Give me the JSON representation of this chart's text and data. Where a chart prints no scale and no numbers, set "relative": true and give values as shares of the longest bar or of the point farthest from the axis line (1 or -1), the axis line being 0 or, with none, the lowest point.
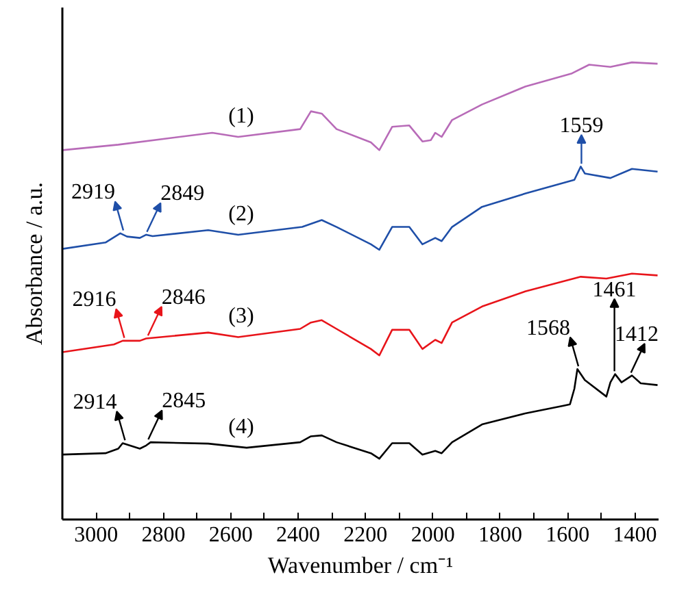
{
  "chart_data": {
    "type": "line",
    "relative": true,
    "xlabel": "Wavenumber / cm⁻¹",
    "ylabel": "Absorbance / a.u.",
    "xlim": [
      3100,
      1330
    ],
    "xticks": [
      3000,
      {
        "value": 2900,
        "label": null
      },
      2800,
      {
        "value": 2700,
        "label": null
      },
      2600,
      {
        "value": 2500,
        "label": null
      },
      2400,
      {
        "value": 2300,
        "label": null
      },
      2200,
      {
        "value": 2100,
        "label": null
      },
      2000,
      {
        "value": 1900,
        "label": null
      },
      1800,
      {
        "value": 1700,
        "label": null
      },
      1600,
      {
        "value": 1500,
        "label": null
      },
      1400
    ],
    "series": [
      {
        "name": "(1)",
        "color": "#b86bb8",
        "x": [
          3100,
          2934,
          2655,
          2578,
          2394,
          2362,
          2330,
          2286,
          2184,
          2159,
          2121,
          2070,
          2031,
          2006,
          1993,
          1974,
          1943,
          1854,
          1726,
          1587,
          1536,
          1473,
          1409,
          1333
        ],
        "values": [
          0.808,
          0.82,
          0.846,
          0.837,
          0.854,
          0.893,
          0.888,
          0.854,
          0.825,
          0.808,
          0.859,
          0.862,
          0.827,
          0.83,
          0.846,
          0.837,
          0.874,
          0.908,
          0.947,
          0.976,
          0.995,
          0.99,
          1.0,
          0.997
        ]
      },
      {
        "name": "(2)",
        "color": "#1f4fa8",
        "x": [
          3100,
          2972,
          2928,
          2908,
          2870,
          2851,
          2832,
          2667,
          2578,
          2388,
          2330,
          2286,
          2184,
          2159,
          2121,
          2070,
          2031,
          1993,
          1974,
          1943,
          1854,
          1726,
          1580,
          1561,
          1549,
          1473,
          1409,
          1333
        ],
        "values": [
          0.592,
          0.606,
          0.626,
          0.619,
          0.616,
          0.623,
          0.62,
          0.633,
          0.623,
          0.64,
          0.655,
          0.64,
          0.602,
          0.59,
          0.64,
          0.64,
          0.602,
          0.616,
          0.609,
          0.64,
          0.684,
          0.713,
          0.743,
          0.772,
          0.757,
          0.747,
          0.767,
          0.761
        ]
      },
      {
        "name": "(3)",
        "color": "#e8141a",
        "x": [
          3100,
          2947,
          2921,
          2870,
          2851,
          2667,
          2578,
          2394,
          2362,
          2330,
          2286,
          2184,
          2159,
          2121,
          2070,
          2031,
          1993,
          1974,
          1943,
          1854,
          1726,
          1561,
          1485,
          1409,
          1333
        ],
        "values": [
          0.366,
          0.383,
          0.391,
          0.391,
          0.396,
          0.409,
          0.399,
          0.417,
          0.431,
          0.436,
          0.417,
          0.373,
          0.359,
          0.415,
          0.415,
          0.373,
          0.393,
          0.386,
          0.431,
          0.466,
          0.499,
          0.531,
          0.527,
          0.538,
          0.534
        ]
      },
      {
        "name": "(4)",
        "color": "#000000",
        "x": [
          3100,
          2972,
          2934,
          2921,
          2870,
          2851,
          2838,
          2667,
          2553,
          2394,
          2362,
          2330,
          2286,
          2184,
          2159,
          2121,
          2070,
          2031,
          1993,
          1974,
          1943,
          1854,
          1726,
          1612,
          1593,
          1580,
          1571,
          1549,
          1485,
          1473,
          1459,
          1440,
          1409,
          1383,
          1333
        ],
        "values": [
          0.142,
          0.145,
          0.155,
          0.167,
          0.155,
          0.162,
          0.169,
          0.166,
          0.157,
          0.169,
          0.182,
          0.184,
          0.169,
          0.145,
          0.133,
          0.167,
          0.167,
          0.142,
          0.15,
          0.145,
          0.169,
          0.208,
          0.232,
          0.249,
          0.252,
          0.286,
          0.329,
          0.305,
          0.269,
          0.3,
          0.318,
          0.3,
          0.315,
          0.298,
          0.294
        ]
      }
    ],
    "annotations": [
      {
        "text": "2919",
        "x": 2919,
        "y": 0.626
      },
      {
        "text": "2849",
        "x": 2849,
        "y": 0.623
      },
      {
        "text": "1559",
        "x": 1559,
        "y": 0.772
      },
      {
        "text": "2916",
        "x": 2916,
        "y": 0.391
      },
      {
        "text": "2846",
        "x": 2846,
        "y": 0.396
      },
      {
        "text": "2914",
        "x": 2914,
        "y": 0.167
      },
      {
        "text": "2845",
        "x": 2845,
        "y": 0.169
      },
      {
        "text": "1568",
        "x": 1568,
        "y": 0.329
      },
      {
        "text": "1461",
        "x": 1461,
        "y": 0.318
      },
      {
        "text": "1412",
        "x": 1412,
        "y": 0.315
      }
    ]
  }
}
